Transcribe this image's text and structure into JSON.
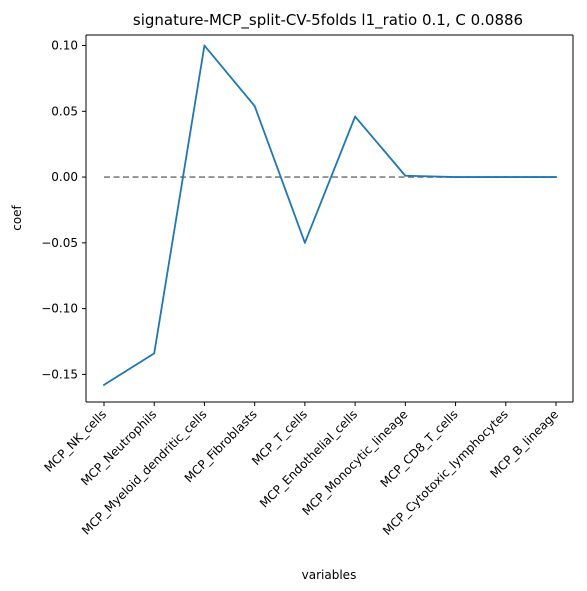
{
  "chart_data": {
    "type": "line",
    "title": "signature-MCP_split-CV-5folds l1_ratio 0.1, C 0.0886",
    "xlabel": "variables",
    "ylabel": "coef",
    "categories": [
      "MCP_NK_cells",
      "MCP_Neutrophils",
      "MCP_Myeloid_dendritic_cells",
      "MCP_Fibroblasts",
      "MCP_T_cells",
      "MCP_Endothelial_cells",
      "MCP_Monocytic_lineage",
      "MCP_CD8_T_cells",
      "MCP_Cytotoxic_lymphocytes",
      "MCP_B_lineage"
    ],
    "series": [
      {
        "values": [
          -0.158,
          -0.134,
          0.1,
          0.054,
          -0.05,
          0.046,
          0.001,
          0.0,
          0.0,
          0.0
        ],
        "color": "#1f77b4"
      }
    ],
    "reference_line": {
      "y": 0.0,
      "style": "dashed",
      "color": "#808080"
    },
    "yticks": [
      -0.15,
      -0.1,
      -0.05,
      0.0,
      0.05,
      0.1
    ],
    "ytick_labels": [
      "−0.15",
      "−0.10",
      "−0.05",
      "0.00",
      "0.05",
      "0.10"
    ],
    "ylim": [
      -0.171,
      0.108
    ],
    "grid": false,
    "legend": "none"
  }
}
